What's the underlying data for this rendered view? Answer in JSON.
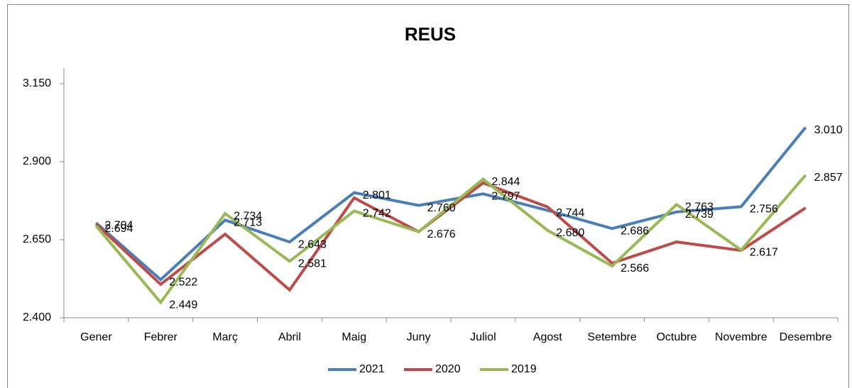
{
  "chart_data": {
    "type": "line",
    "title": "REUS",
    "categories": [
      "Gener",
      "Febrer",
      "Març",
      "Abril",
      "Maig",
      "Juny",
      "Juliol",
      "Agost",
      "Setembre",
      "Octubre",
      "Novembre",
      "Desembre"
    ],
    "series": [
      {
        "name": "2021",
        "color": "#4a7ebb",
        "values": [
          2704,
          2522,
          2713,
          2643,
          2801,
          2760,
          2797,
          2744,
          2686,
          2739,
          2756,
          3010
        ],
        "value_labels": [
          "2.704",
          "2.522",
          "2.713",
          "2.643",
          "2.801",
          "2.760",
          "2.797",
          "2.744",
          "2.686",
          "2.739",
          "2.756",
          "3.010"
        ]
      },
      {
        "name": "2020",
        "color": "#be4b48",
        "values": [
          2700,
          2507,
          2668,
          2489,
          2784,
          2676,
          2832,
          2755,
          2575,
          2643,
          2616,
          2752
        ]
      },
      {
        "name": "2019",
        "color": "#98b954",
        "values": [
          2694,
          2449,
          2734,
          2581,
          2742,
          2676,
          2844,
          2680,
          2566,
          2763,
          2617,
          2857
        ],
        "value_labels": [
          "2.694",
          "2.449",
          "2.734",
          "2.581",
          "2.742",
          "2.676",
          "2.844",
          "2.680",
          "2.566",
          "2.763",
          "2.617",
          "2.857"
        ]
      }
    ],
    "ylim": [
      2400,
      3200
    ],
    "yticks": [
      {
        "value": 2400,
        "label": "2.400"
      },
      {
        "value": 2650,
        "label": "2.650"
      },
      {
        "value": 2900,
        "label": "2.900"
      },
      {
        "value": 3150,
        "label": "3.150"
      }
    ],
    "legend": "bottom"
  }
}
